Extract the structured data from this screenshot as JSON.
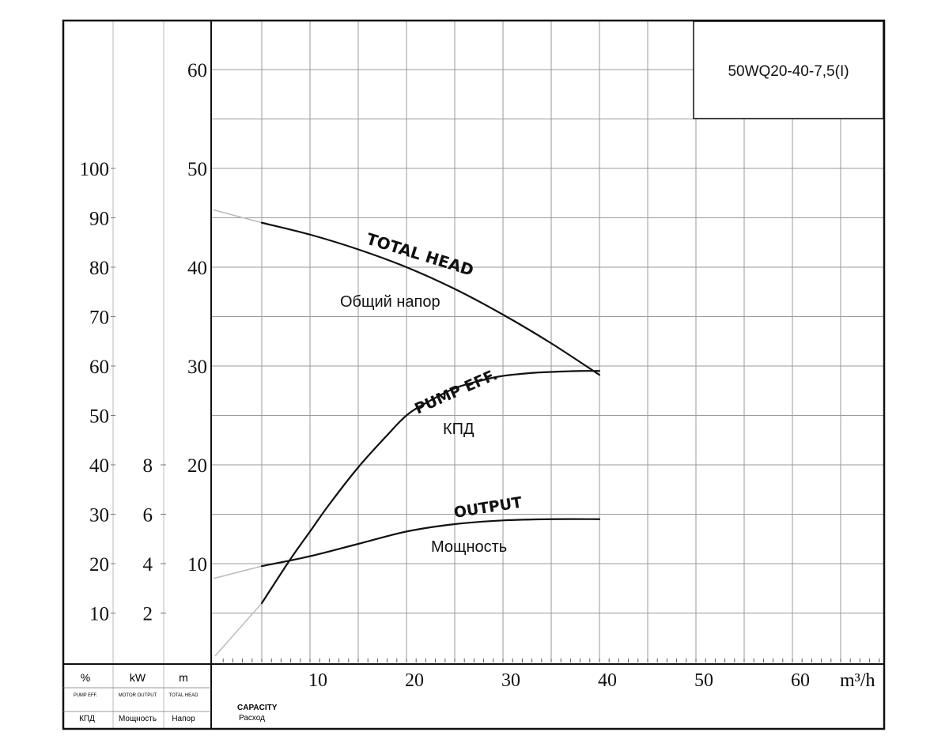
{
  "chart_data": {
    "type": "line",
    "model_label": "50WQ20-40-7,5(I)",
    "x_axis": {
      "unit": "m³/h",
      "ticks": [
        10,
        20,
        30,
        40,
        50,
        60
      ],
      "range": [
        0,
        70
      ],
      "label_en": "CAPACITY",
      "label_ru": "Расход"
    },
    "axes": [
      {
        "key": "eff",
        "unit": "%",
        "label_en": "PUMP EFF.",
        "label_ru": "КПД",
        "ticks": [
          10,
          20,
          30,
          40,
          50,
          60,
          70,
          80,
          90,
          100
        ]
      },
      {
        "key": "power",
        "unit": "kW",
        "label_en": "MOTOR OUTPUT",
        "label_ru": "Мощность",
        "ticks": [
          2,
          4,
          6,
          8
        ]
      },
      {
        "key": "head",
        "unit": "m",
        "label_en": "TOTAL HEAD",
        "label_ru": "Напор",
        "ticks": [
          10,
          20,
          30,
          40,
          50,
          60
        ],
        "range": [
          0,
          65
        ]
      }
    ],
    "grid": true,
    "series": [
      {
        "key": "head",
        "name": "TOTAL HEAD",
        "name_ru": "Общий напор",
        "axis": "head",
        "x": [
          5,
          10,
          15,
          20,
          25,
          30,
          35,
          40
        ],
        "y": [
          44.5,
          43.3,
          41.8,
          40.0,
          37.8,
          35.2,
          32.3,
          29.1
        ]
      },
      {
        "key": "eff",
        "name": "PUMP EFF.",
        "name_ru": "КПД",
        "axis": "eff",
        "x": [
          5,
          8,
          10,
          12,
          15,
          18,
          20,
          22,
          25,
          28,
          30,
          33,
          35,
          38,
          40
        ],
        "y": [
          12,
          21,
          26.5,
          32,
          39.5,
          46,
          50,
          52.5,
          55.5,
          57.2,
          58,
          58.6,
          58.8,
          59,
          59
        ]
      },
      {
        "key": "power",
        "name": "OUTPUT",
        "name_ru": "Мощность",
        "axis": "power",
        "x": [
          5,
          10,
          15,
          20,
          25,
          30,
          35,
          40
        ],
        "y": [
          3.9,
          4.3,
          4.8,
          5.3,
          5.6,
          5.75,
          5.8,
          5.8
        ]
      }
    ]
  }
}
